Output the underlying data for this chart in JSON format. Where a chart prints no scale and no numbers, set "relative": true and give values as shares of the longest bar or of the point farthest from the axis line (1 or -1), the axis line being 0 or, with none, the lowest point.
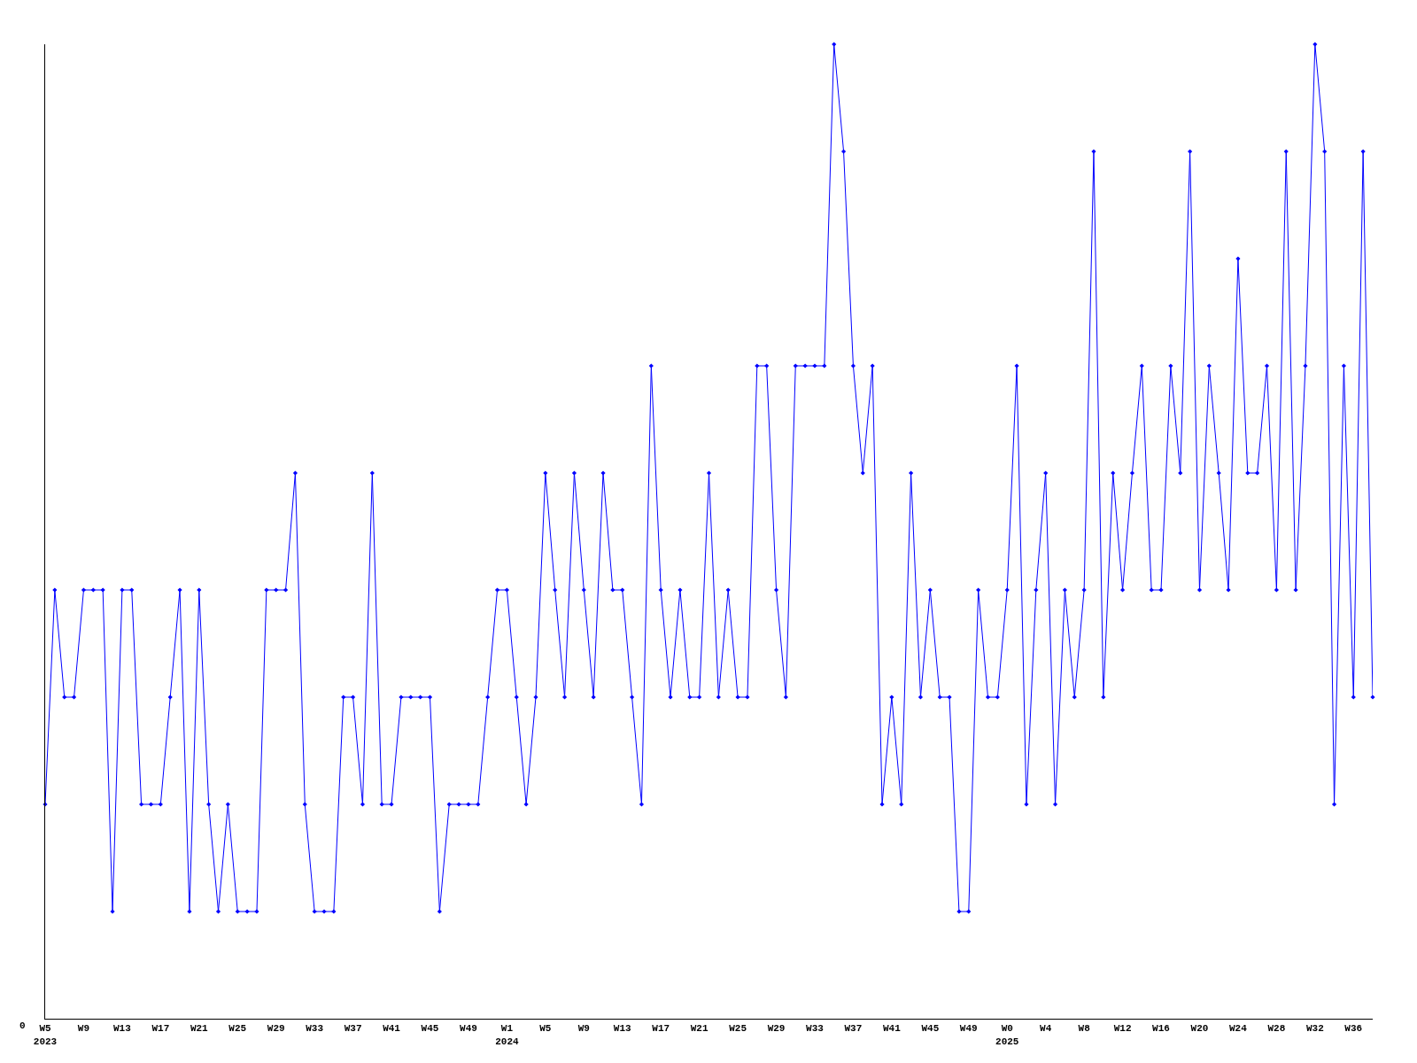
{
  "chart_data": {
    "type": "line",
    "relative": true,
    "marker": "diamond",
    "line_style": "solid",
    "grid": false,
    "legend": false,
    "annotations": [
      "0"
    ],
    "categories": [
      "W5\n2023",
      null,
      null,
      null,
      "W9",
      null,
      null,
      null,
      "W13",
      null,
      null,
      null,
      "W17",
      null,
      null,
      null,
      "W21",
      null,
      null,
      null,
      "W25",
      null,
      null,
      null,
      "W29",
      null,
      null,
      null,
      "W33",
      null,
      null,
      null,
      "W37",
      null,
      null,
      null,
      "W41",
      null,
      null,
      null,
      "W45",
      null,
      null,
      null,
      "W49",
      null,
      null,
      null,
      "W1\n2024",
      null,
      null,
      null,
      "W5",
      null,
      null,
      null,
      "W9",
      null,
      null,
      null,
      "W13",
      null,
      null,
      null,
      "W17",
      null,
      null,
      null,
      "W21",
      null,
      null,
      null,
      "W25",
      null,
      null,
      null,
      "W29",
      null,
      null,
      null,
      "W33",
      null,
      null,
      null,
      "W37",
      null,
      null,
      null,
      "W41",
      null,
      null,
      null,
      "W45",
      null,
      null,
      null,
      "W49",
      null,
      null,
      null,
      "W0\n2025",
      null,
      null,
      null,
      "W4",
      null,
      null,
      null,
      "W8",
      null,
      null,
      null,
      "W12",
      null,
      null,
      null,
      "W16",
      null,
      null,
      null,
      "W20",
      null,
      null,
      null,
      "W24",
      null,
      null,
      null,
      "W28",
      null,
      null,
      null,
      "W32",
      null,
      null,
      null,
      "W36",
      null,
      null
    ],
    "series": [
      {
        "color": "#0000ff",
        "values": [
          0.22,
          0.44,
          0.33,
          0.33,
          0.44,
          0.44,
          0.44,
          0.11,
          0.44,
          0.44,
          0.22,
          0.22,
          0.22,
          0.33,
          0.44,
          0.11,
          0.44,
          0.22,
          0.11,
          0.22,
          0.11,
          0.11,
          0.11,
          0.44,
          0.44,
          0.44,
          0.56,
          0.22,
          0.11,
          0.11,
          0.11,
          0.33,
          0.33,
          0.22,
          0.56,
          0.22,
          0.22,
          0.33,
          0.33,
          0.33,
          0.33,
          0.11,
          0.22,
          0.22,
          0.22,
          0.22,
          0.33,
          0.44,
          0.44,
          0.33,
          0.22,
          0.33,
          0.56,
          0.44,
          0.33,
          0.56,
          0.44,
          0.33,
          0.56,
          0.44,
          0.44,
          0.33,
          0.22,
          0.67,
          0.44,
          0.33,
          0.44,
          0.33,
          0.33,
          0.56,
          0.33,
          0.44,
          0.33,
          0.33,
          0.67,
          0.67,
          0.44,
          0.33,
          0.67,
          0.67,
          0.67,
          0.67,
          1,
          0.89,
          0.67,
          0.56,
          0.67,
          0.22,
          0.33,
          0.22,
          0.56,
          0.33,
          0.44,
          0.33,
          0.33,
          0.11,
          0.11,
          0.44,
          0.33,
          0.33,
          0.44,
          0.67,
          0.22,
          0.44,
          0.56,
          0.22,
          0.44,
          0.33,
          0.44,
          0.89,
          0.33,
          0.56,
          0.44,
          0.56,
          0.67,
          0.44,
          0.44,
          0.67,
          0.56,
          0.89,
          0.44,
          0.67,
          0.56,
          0.44,
          0.78,
          0.56,
          0.56,
          0.67,
          0.44,
          0.89,
          0.44,
          0.67,
          1,
          0.89,
          0.22,
          0.67,
          0.33,
          0.89,
          0.33
        ]
      }
    ]
  }
}
